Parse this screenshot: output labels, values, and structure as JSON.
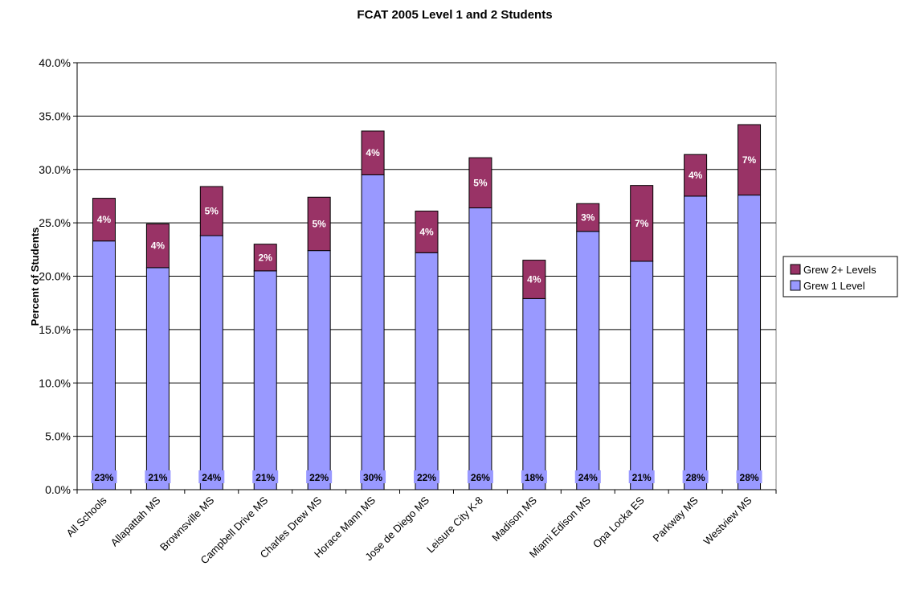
{
  "chart_data": {
    "type": "bar",
    "stacked": true,
    "title": "FCAT 2005 Level 1 and 2 Students",
    "xlabel": "",
    "ylabel": "Percent of Students",
    "ylim": [
      0,
      40
    ],
    "yticks": [
      "0.0%",
      "5.0%",
      "10.0%",
      "15.0%",
      "20.0%",
      "25.0%",
      "30.0%",
      "35.0%",
      "40.0%"
    ],
    "grid": true,
    "legend_position": "right",
    "categories": [
      "All Schools",
      "Allapattah MS",
      "Brownsville MS",
      "Campbell Drive MS",
      "Charles Drew MS",
      "Horace Mann MS",
      "Jose de Diego MS",
      "Leisure City K-8",
      "Madison MS",
      "Miami Edison MS",
      "Opa Locka ES",
      "Parkway MS",
      "Westview MS"
    ],
    "series": [
      {
        "name": "Grew 1 Level",
        "color": "#9999ff",
        "values": [
          23.3,
          20.8,
          23.8,
          20.5,
          22.4,
          29.5,
          22.2,
          26.4,
          17.9,
          24.2,
          21.4,
          27.5,
          27.6
        ],
        "labels": [
          "23%",
          "21%",
          "24%",
          "21%",
          "22%",
          "30%",
          "22%",
          "26%",
          "18%",
          "24%",
          "21%",
          "28%",
          "28%"
        ]
      },
      {
        "name": "Grew 2+ Levels",
        "color": "#993366",
        "values": [
          4.0,
          4.1,
          4.6,
          2.5,
          5.0,
          4.1,
          3.9,
          4.7,
          3.6,
          2.6,
          7.1,
          3.9,
          6.6
        ],
        "labels": [
          "4%",
          "4%",
          "5%",
          "2%",
          "5%",
          "4%",
          "4%",
          "5%",
          "4%",
          "3%",
          "7%",
          "4%",
          "7%"
        ]
      }
    ]
  }
}
